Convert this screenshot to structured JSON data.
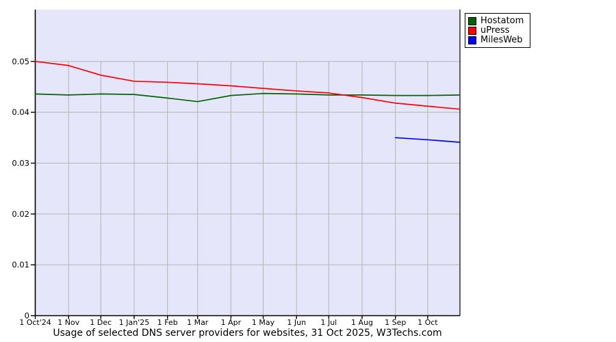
{
  "chart_data": {
    "type": "line",
    "title": "Usage of selected DNS server providers for websites, 31 Oct 2025, W3Techs.com",
    "xlabel": "",
    "ylabel": "",
    "x_axis": {
      "range_days": [
        0,
        395
      ],
      "ticks": [
        {
          "day": 0,
          "label": "1 Oct'24"
        },
        {
          "day": 31,
          "label": "1 Nov"
        },
        {
          "day": 61,
          "label": "1 Dec"
        },
        {
          "day": 92,
          "label": "1 Jan'25"
        },
        {
          "day": 123,
          "label": "1 Feb"
        },
        {
          "day": 151,
          "label": "1 Mar"
        },
        {
          "day": 182,
          "label": "1 Apr"
        },
        {
          "day": 212,
          "label": "1 May"
        },
        {
          "day": 243,
          "label": "1 Jun"
        },
        {
          "day": 273,
          "label": "1 Jul"
        },
        {
          "day": 304,
          "label": "1 Aug"
        },
        {
          "day": 335,
          "label": "1 Sep"
        },
        {
          "day": 365,
          "label": "1 Oct"
        }
      ]
    },
    "y_axis": {
      "range": [
        0,
        0.0602
      ],
      "ticks": [
        {
          "value": 0,
          "label": "0"
        },
        {
          "value": 0.01,
          "label": "0.01"
        },
        {
          "value": 0.02,
          "label": "0.02"
        },
        {
          "value": 0.03,
          "label": "0.03"
        },
        {
          "value": 0.04,
          "label": "0.04"
        },
        {
          "value": 0.05,
          "label": "0.05"
        }
      ]
    },
    "x_days": [
      0,
      31,
      61,
      92,
      123,
      151,
      182,
      212,
      243,
      273,
      304,
      335,
      365,
      395
    ],
    "x_point_dates": [
      "1 Oct 2024",
      "1 Nov 2024",
      "1 Dec 2024",
      "1 Jan 2025",
      "1 Feb 2025",
      "1 Mar 2025",
      "1 Apr 2025",
      "1 May 2025",
      "1 Jun 2025",
      "1 Jul 2025",
      "1 Aug 2025",
      "1 Sep 2025",
      "1 Oct 2025",
      "31 Oct 2025"
    ],
    "series": [
      {
        "name": "Hostatom",
        "color": "#006400",
        "values": [
          0.0436,
          0.0434,
          0.0436,
          0.0435,
          0.0428,
          0.0421,
          0.0433,
          0.0437,
          0.0436,
          0.0434,
          0.0434,
          0.0433,
          0.0433,
          0.0434
        ]
      },
      {
        "name": "uPress",
        "color": "#ff0000",
        "values": [
          0.05,
          0.0492,
          0.0473,
          0.0461,
          0.0459,
          0.0456,
          0.0452,
          0.0447,
          0.0442,
          0.0438,
          0.0429,
          0.0418,
          0.0412,
          0.0406
        ]
      },
      {
        "name": "MilesWeb",
        "color": "#0000ff",
        "values": [
          null,
          null,
          null,
          null,
          null,
          null,
          null,
          null,
          null,
          null,
          null,
          0.035,
          0.0346,
          0.0341
        ]
      }
    ],
    "grid": true,
    "legend_position": "top-right-outside",
    "colors": {
      "plot_background": "#e6e6fa",
      "gridline": "#b3b3b3",
      "axis": "#000000",
      "text": "#000000",
      "page_background": "#ffffff"
    }
  }
}
